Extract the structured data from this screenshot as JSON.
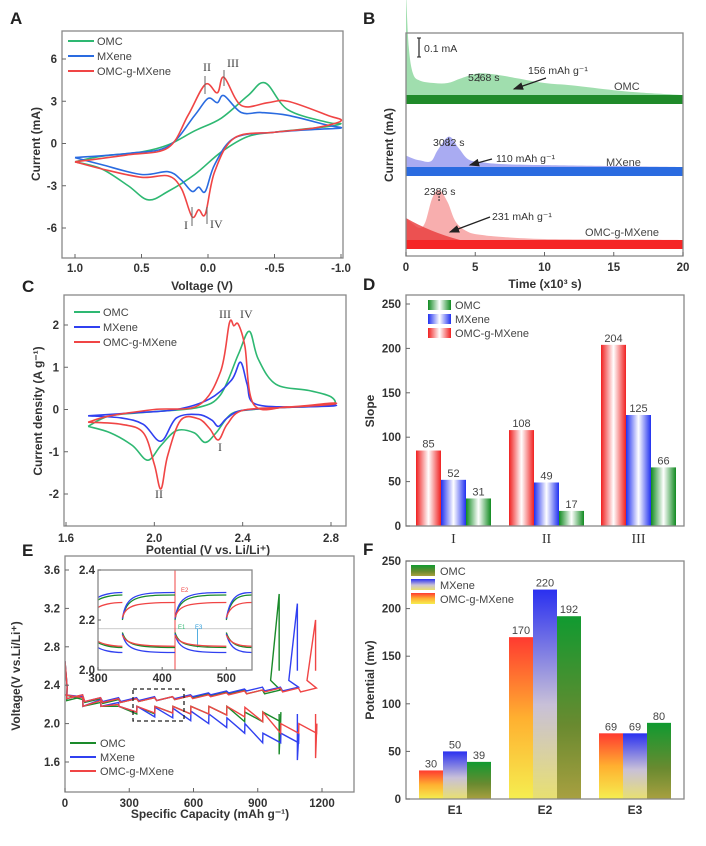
{
  "colors": {
    "omc": "#2eb872",
    "omc_dark": "#1a8a2a",
    "mxene": "#2a6be0",
    "mxene_b": "#3040f0",
    "hybrid": "#f04545",
    "pink": "#e8407a"
  },
  "chart_data": [
    {
      "panel": "A",
      "type": "line",
      "title": "",
      "xlabel": "Voltage (V)",
      "ylabel": "Current (mA)",
      "xlim": [
        1.0,
        -1.0
      ],
      "ylim": [
        -7.5,
        7.5
      ],
      "xticks": [
        "1.0",
        "0.5",
        "0.0",
        "-0.5",
        "-1.0"
      ],
      "xtick_values": [
        1.0,
        0.5,
        0.0,
        -0.5,
        -1.0
      ],
      "yticks": [
        "6",
        "3",
        "0",
        "-3",
        "-6"
      ],
      "ytick_values": [
        6,
        3,
        0,
        -3,
        -6
      ],
      "legend": [
        "OMC",
        "MXene",
        "OMC-g-MXene"
      ],
      "legend_position": "top-left",
      "annotations": [
        "I",
        "II",
        "III",
        "IV"
      ],
      "series": [
        {
          "name": "OMC",
          "color_key": "omc",
          "x": [
            1.0,
            0.8,
            0.6,
            0.45,
            0.3,
            0.1,
            -0.1,
            -0.3,
            -0.5,
            -0.7,
            -0.9,
            -1.0,
            -0.9,
            -0.6,
            -0.43,
            -0.3,
            -0.1,
            0.1,
            0.3,
            0.5,
            0.8,
            1.0
          ],
          "y": [
            -1.3,
            -1.8,
            -3.0,
            -4.0,
            -3.4,
            -2.2,
            -0.6,
            0.5,
            0.8,
            1.0,
            1.2,
            1.4,
            1.5,
            2.4,
            4.3,
            3.4,
            1.8,
            0.9,
            -0.1,
            -0.6,
            -0.9,
            -1.3
          ]
        },
        {
          "name": "MXene",
          "color_key": "mxene",
          "x": [
            1.0,
            0.8,
            0.5,
            0.3,
            0.2,
            0.12,
            0.07,
            0.02,
            -0.05,
            -0.2,
            -0.5,
            -0.8,
            -1.0,
            -0.9,
            -0.6,
            -0.4,
            -0.25,
            -0.12,
            -0.07,
            0.0,
            0.1,
            0.3,
            0.6,
            1.0
          ],
          "y": [
            -1.0,
            -1.5,
            -2.2,
            -2.0,
            -2.6,
            -3.4,
            -3.1,
            -3.4,
            -1.5,
            0.4,
            0.8,
            1.0,
            1.1,
            1.3,
            2.0,
            2.2,
            2.2,
            3.4,
            2.9,
            3.2,
            2.0,
            -0.2,
            -0.7,
            -1.0
          ]
        },
        {
          "name": "OMC-g-MXene",
          "color_key": "hybrid",
          "x": [
            1.0,
            0.8,
            0.5,
            0.3,
            0.2,
            0.12,
            0.07,
            0.02,
            -0.05,
            -0.2,
            -0.5,
            -0.8,
            -1.0,
            -0.9,
            -0.6,
            -0.45,
            -0.25,
            -0.12,
            -0.07,
            0.02,
            0.15,
            0.3,
            0.6,
            1.0
          ],
          "y": [
            -1.3,
            -1.8,
            -2.4,
            -2.3,
            -3.2,
            -5.2,
            -4.7,
            -5.0,
            -2.0,
            0.4,
            0.8,
            1.1,
            1.6,
            2.0,
            3.0,
            2.9,
            2.7,
            4.7,
            3.6,
            4.2,
            2.0,
            -0.3,
            -0.8,
            -1.3
          ]
        }
      ]
    },
    {
      "panel": "B",
      "type": "area",
      "xlabel": "Time (x10³ s)",
      "ylabel": "Current (mA)",
      "xlim": [
        0,
        20
      ],
      "xticks": [
        "0",
        "5",
        "10",
        "15",
        "20"
      ],
      "xtick_values": [
        0,
        5,
        10,
        15,
        20
      ],
      "scale_bar": "0.1 mA",
      "series": [
        {
          "name": "OMC",
          "label_color_key": "omc_dark",
          "peak_time": "5268 s",
          "capacity": "156 mAh g⁻¹",
          "peak_x": 5.268,
          "x": [
            0,
            0.2,
            0.5,
            1,
            2,
            3,
            4,
            5.2,
            6.5,
            8,
            10,
            12,
            15,
            17,
            20
          ],
          "y": [
            0.85,
            0.4,
            0.18,
            0.12,
            0.1,
            0.1,
            0.14,
            0.18,
            0.17,
            0.14,
            0.1,
            0.08,
            0.04,
            0.02,
            0.0
          ]
        },
        {
          "name": "MXene",
          "label_color_key": "mxene",
          "peak_time": "3082 s",
          "capacity": "110 mAh g⁻¹",
          "peak_x": 3.082,
          "x": [
            0,
            0.5,
            1,
            1.8,
            2.3,
            3.1,
            3.8,
            4.5,
            5.5,
            7,
            10,
            15,
            20
          ],
          "y": [
            0.12,
            0.09,
            0.07,
            0.06,
            0.18,
            0.32,
            0.2,
            0.08,
            0.05,
            0.03,
            0.02,
            0.01,
            0.0
          ]
        },
        {
          "name": "OMC-g-MXene",
          "label_color_key": "pink",
          "peak_time": "2386 s",
          "capacity": "231 mAh g⁻¹",
          "peak_x": 2.386,
          "x": [
            0,
            0.5,
            1,
            1.4,
            1.9,
            2.4,
            3.0,
            3.6,
            4.5,
            5.5,
            7,
            10,
            15,
            20
          ],
          "y": [
            0.22,
            0.16,
            0.12,
            0.18,
            0.42,
            0.5,
            0.38,
            0.18,
            0.08,
            0.05,
            0.03,
            0.01,
            0.005,
            0.0
          ]
        }
      ]
    },
    {
      "panel": "C",
      "type": "line",
      "xlabel": "Potential (V vs. Li/Li⁺)",
      "ylabel": "Current density (A g⁻¹)",
      "xlim": [
        1.6,
        2.88
      ],
      "ylim": [
        -2.75,
        2.65
      ],
      "xticks": [
        "1.6",
        "2.0",
        "2.4",
        "2.8"
      ],
      "xtick_values": [
        1.6,
        2.0,
        2.4,
        2.8
      ],
      "yticks": [
        "2",
        "1",
        "0",
        "-1",
        "-2"
      ],
      "ytick_values": [
        2,
        1,
        0,
        -1,
        -2
      ],
      "legend": [
        "OMC",
        "MXene",
        "OMC-g-MXene"
      ],
      "legend_position": "top-left",
      "annotations": [
        "I",
        "II",
        "III",
        "IV"
      ],
      "series": [
        {
          "name": "OMC",
          "color_key": "omc",
          "x": [
            1.7,
            1.8,
            1.9,
            1.97,
            2.03,
            2.1,
            2.18,
            2.23,
            2.28,
            2.35,
            2.45,
            2.6,
            2.8,
            2.8,
            2.7,
            2.55,
            2.47,
            2.43,
            2.38,
            2.3,
            2.2,
            2.0,
            1.8,
            1.7
          ],
          "y": [
            -0.4,
            -0.55,
            -0.85,
            -1.2,
            -0.85,
            -0.5,
            -0.55,
            -0.78,
            -0.55,
            -0.1,
            0.0,
            0.05,
            0.1,
            0.3,
            0.45,
            0.6,
            1.2,
            1.85,
            1.3,
            0.35,
            0.05,
            -0.05,
            -0.15,
            -0.4
          ]
        },
        {
          "name": "MXene",
          "color_key": "mxene_b",
          "x": [
            1.7,
            1.85,
            1.95,
            2.03,
            2.1,
            2.2,
            2.26,
            2.29,
            2.33,
            2.4,
            2.6,
            2.8,
            2.8,
            2.6,
            2.45,
            2.42,
            2.39,
            2.35,
            2.25,
            2.1,
            1.9,
            1.7
          ],
          "y": [
            -0.15,
            -0.2,
            -0.35,
            -0.75,
            -0.2,
            -0.12,
            -0.25,
            -0.4,
            -0.2,
            -0.02,
            0.05,
            0.08,
            0.1,
            0.06,
            0.15,
            0.6,
            1.12,
            0.7,
            0.25,
            0.0,
            -0.08,
            -0.15
          ]
        },
        {
          "name": "OMC-g-MXene",
          "color_key": "hybrid",
          "x": [
            1.7,
            1.85,
            1.95,
            2.0,
            2.03,
            2.06,
            2.12,
            2.2,
            2.25,
            2.29,
            2.33,
            2.4,
            2.6,
            2.8,
            2.8,
            2.6,
            2.45,
            2.41,
            2.38,
            2.36,
            2.34,
            2.3,
            2.2,
            2.0,
            1.8,
            1.7
          ],
          "y": [
            -0.3,
            -0.35,
            -0.55,
            -1.3,
            -1.88,
            -1.1,
            -0.25,
            -0.22,
            -0.45,
            -0.72,
            -0.35,
            -0.02,
            0.05,
            0.12,
            0.15,
            0.06,
            0.12,
            1.5,
            2.02,
            1.98,
            2.05,
            0.9,
            0.1,
            0.0,
            -0.15,
            -0.3
          ]
        }
      ]
    },
    {
      "panel": "D",
      "type": "bar",
      "xlabel": "",
      "ylabel": "Slope",
      "ylim": [
        0,
        260
      ],
      "yticks": [
        "0",
        "50",
        "100",
        "150",
        "200",
        "250"
      ],
      "ytick_values": [
        0,
        50,
        100,
        150,
        200,
        250
      ],
      "categories": [
        "I",
        "II",
        "III"
      ],
      "legend": [
        "OMC",
        "MXene",
        "OMC-g-MXene"
      ],
      "legend_position": "top-left",
      "series": [
        {
          "name": "OMC-g-MXene",
          "color_key": "hybrid",
          "values": [
            85,
            108,
            204
          ]
        },
        {
          "name": "MXene",
          "color_key": "mxene_b",
          "values": [
            52,
            49,
            125
          ]
        },
        {
          "name": "OMC",
          "color_key": "omc_dark",
          "values": [
            31,
            17,
            66
          ]
        }
      ]
    },
    {
      "panel": "E",
      "type": "line",
      "xlabel": "Specific Capacity (mAh g⁻¹)",
      "ylabel": "Voltage(V vs.Li/Li⁺)",
      "xlim": [
        0,
        1350
      ],
      "ylim": [
        1.2,
        3.7
      ],
      "xticks": [
        "0",
        "300",
        "600",
        "900",
        "1200"
      ],
      "xtick_values": [
        0,
        300,
        600,
        900,
        1200
      ],
      "yticks": [
        "1.6",
        "2.0",
        "2.4",
        "2.8",
        "3.2",
        "3.6"
      ],
      "ytick_values": [
        1.6,
        2.0,
        2.4,
        2.8,
        3.2,
        3.6
      ],
      "legend": [
        "OMC",
        "MXene",
        "OMC-g-MXene"
      ],
      "legend_position": "bottom-left",
      "inset": {
        "xlim": [
          300,
          540
        ],
        "ylim": [
          2.0,
          2.4
        ],
        "xticks": [
          "300",
          "400",
          "500"
        ],
        "xtick_values": [
          300,
          400,
          500
        ],
        "yticks": [
          "2.0",
          "2.2",
          "2.4"
        ],
        "ytick_values": [
          2.0,
          2.2,
          2.4
        ],
        "labels": [
          "E1",
          "E2",
          "E3"
        ]
      },
      "series": [
        {
          "name": "OMC",
          "color_key": "omc_dark",
          "end_capacity": 1000,
          "charge_end_v": 3.35,
          "discharge_end_v": 1.68
        },
        {
          "name": "MXene",
          "color_key": "mxene_b",
          "end_capacity": 1085,
          "charge_end_v": 3.25,
          "discharge_end_v": 1.62
        },
        {
          "name": "OMC-g-MXene",
          "color_key": "hybrid",
          "end_capacity": 1170,
          "charge_end_v": 3.08,
          "discharge_end_v": 1.64
        }
      ]
    },
    {
      "panel": "F",
      "type": "bar",
      "xlabel": "",
      "ylabel": "Potential (mv)",
      "ylim": [
        0,
        250
      ],
      "yticks": [
        "0",
        "50",
        "100",
        "150",
        "200",
        "250"
      ],
      "ytick_values": [
        0,
        50,
        100,
        150,
        200,
        250
      ],
      "categories": [
        "E1",
        "E2",
        "E3"
      ],
      "legend": [
        "OMC",
        "MXene",
        "OMC-g-MXene"
      ],
      "legend_position": "top-left",
      "series": [
        {
          "name": "OMC-g-MXene",
          "color_key": "hybrid",
          "values": [
            30,
            170,
            69
          ]
        },
        {
          "name": "MXene",
          "color_key": "mxene_b",
          "values": [
            50,
            220,
            69
          ]
        },
        {
          "name": "OMC",
          "color_key": "omc_dark",
          "values": [
            39,
            192,
            80
          ]
        }
      ]
    }
  ]
}
